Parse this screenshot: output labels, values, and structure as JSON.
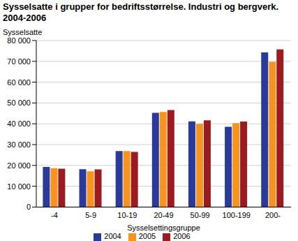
{
  "chart_data": {
    "type": "bar",
    "title": "Sysselsatte i grupper for bedriftsstørrelse. Industri og bergverk. 2004-2006",
    "y_label": "Sysselsatte",
    "x_label": "Sysselsettingsgruppe",
    "categories": [
      "-4",
      "5-9",
      "10-19",
      "20-49",
      "50-99",
      "100-199",
      "200-"
    ],
    "series": [
      {
        "name": "2004",
        "color": "#2a3a99",
        "values": [
          19300,
          18200,
          26900,
          45300,
          41200,
          38600,
          74300
        ]
      },
      {
        "name": "2005",
        "color": "#f7931e",
        "values": [
          18700,
          17200,
          26900,
          45700,
          40000,
          40300,
          69800
        ]
      },
      {
        "name": "2006",
        "color": "#9b1c20",
        "values": [
          18400,
          18100,
          26500,
          46600,
          41700,
          41100,
          75700
        ]
      }
    ],
    "ylim": [
      0,
      80000
    ],
    "yticks": [
      0,
      {
        "value": 10000,
        "label": "10 000"
      },
      {
        "value": 20000,
        "label": "20 000"
      },
      {
        "value": 30000,
        "label": "30 000"
      },
      {
        "value": 40000,
        "label": "40 000"
      },
      {
        "value": 50000,
        "label": "50 000"
      },
      {
        "value": 60000,
        "label": "60 000"
      },
      {
        "value": 70000,
        "label": "70 000"
      },
      {
        "value": 80000,
        "label": "80 000"
      }
    ],
    "grid": true,
    "legend": "bottom"
  }
}
